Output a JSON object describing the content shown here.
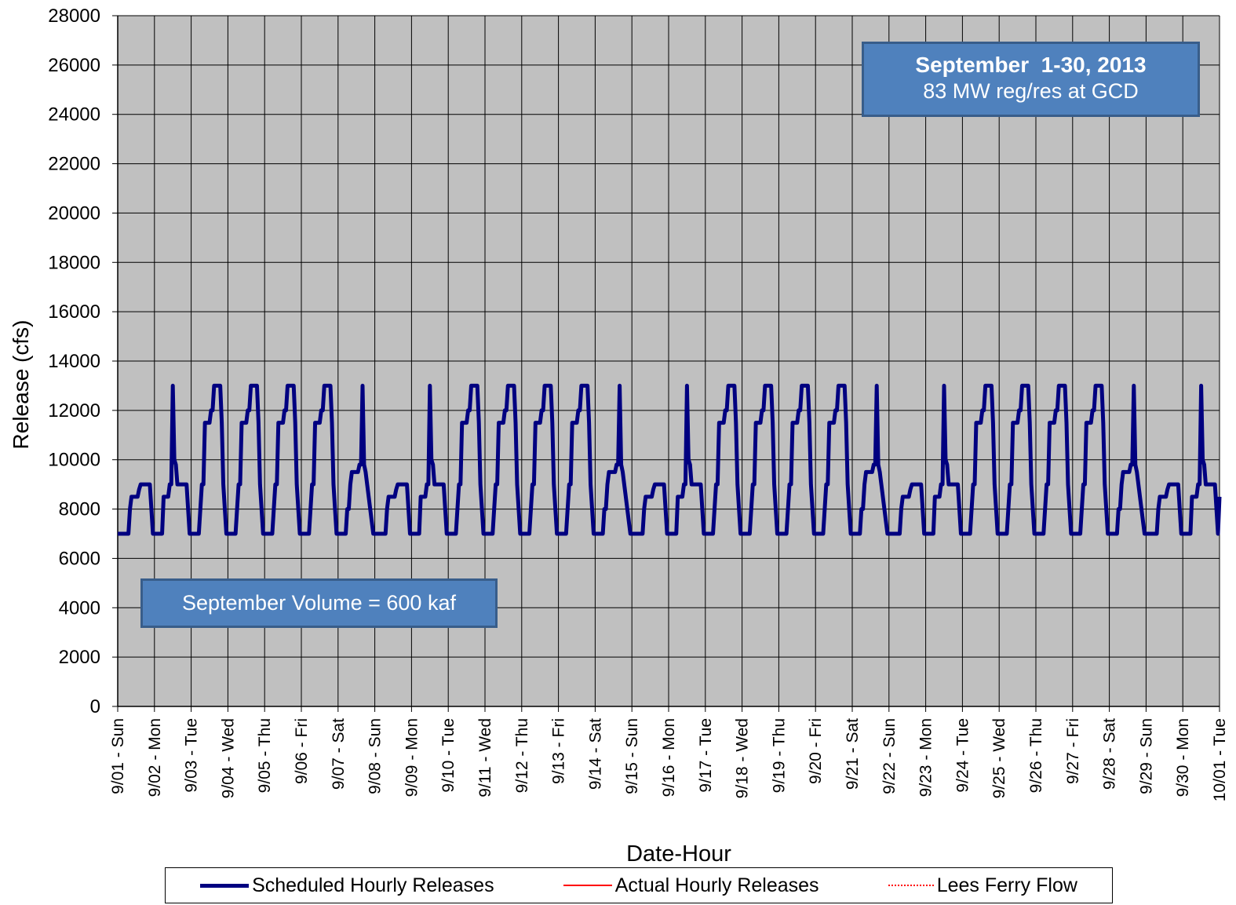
{
  "chart_data": {
    "type": "line",
    "title": "September  1-30, 2013",
    "subtitle": "83 MW reg/res at GCD",
    "annotation": "September Volume = 600 kaf",
    "xlabel": "Date-Hour",
    "ylabel": "Release (cfs)",
    "ylim": [
      0,
      28000
    ],
    "y_ticks": [
      "0",
      "2000",
      "4000",
      "6000",
      "8000",
      "10000",
      "12000",
      "14000",
      "16000",
      "18000",
      "20000",
      "22000",
      "24000",
      "26000",
      "28000"
    ],
    "x_tick_labels": [
      "9/01 - Sun",
      "9/02 - Mon",
      "9/03 - Tue",
      "9/04 - Wed",
      "9/05 - Thu",
      "9/06 - Fri",
      "9/07 - Sat",
      "9/08 - Sun",
      "9/09 - Mon",
      "9/10 - Tue",
      "9/11 - Wed",
      "9/12 - Thu",
      "9/13 - Fri",
      "9/14 - Sat",
      "9/15 - Sun",
      "9/16 - Mon",
      "9/17 - Tue",
      "9/18 - Wed",
      "9/19 - Thu",
      "9/20 - Fri",
      "9/21 - Sat",
      "9/22 - Sun",
      "9/23 - Mon",
      "9/24 - Tue",
      "9/25 - Wed",
      "9/26 - Thu",
      "9/27 - Fri",
      "9/28 - Sat",
      "9/29 - Sun",
      "9/30 - Mon",
      "10/01 - Tue"
    ],
    "grid": true,
    "legend_position": "bottom",
    "plot_background": "#c0c0c0",
    "series": [
      {
        "name": "Scheduled Hourly Releases",
        "color": "#000080",
        "style": "solid",
        "hourly_profiles": {
          "weekday": [
            7000,
            7000,
            7000,
            7000,
            7000,
            7000,
            8000,
            9000,
            9000,
            11500,
            11500,
            11500,
            11500,
            12000,
            12000,
            13000,
            13000,
            13000,
            13000,
            13000,
            11500,
            9000,
            8000,
            7000
          ],
          "monday": [
            7000,
            7000,
            7000,
            7000,
            7000,
            7000,
            8500,
            8500,
            8500,
            8500,
            9000,
            9000,
            13000,
            10000,
            9800,
            9000,
            9000,
            9000,
            9000,
            9000,
            9000,
            9000,
            8000,
            7000
          ],
          "saturday": [
            7000,
            7000,
            7000,
            7000,
            7000,
            7000,
            8000,
            8000,
            9000,
            9500,
            9500,
            9500,
            9500,
            9500,
            9800,
            9800,
            13000,
            9800,
            9500,
            9000,
            8500,
            8000,
            7500,
            7000
          ],
          "sunday": [
            7000,
            7000,
            7000,
            7000,
            7000,
            7000,
            7000,
            7000,
            8000,
            8500,
            8500,
            8500,
            8500,
            8500,
            8800,
            9000,
            9000,
            9000,
            9000,
            9000,
            9000,
            9000,
            8000,
            7000
          ]
        },
        "day_types": [
          "sunday",
          "monday",
          "weekday",
          "weekday",
          "weekday",
          "weekday",
          "saturday",
          "sunday",
          "monday",
          "weekday",
          "weekday",
          "weekday",
          "weekday",
          "saturday",
          "sunday",
          "monday",
          "weekday",
          "weekday",
          "weekday",
          "weekday",
          "saturday",
          "sunday",
          "monday",
          "weekday",
          "weekday",
          "weekday",
          "weekday",
          "saturday",
          "sunday",
          "monday"
        ],
        "final_value": 8500
      },
      {
        "name": "Actual Hourly Releases",
        "color": "#ff0000",
        "style": "solid",
        "values": []
      },
      {
        "name": "Lees Ferry Flow",
        "color": "#ff0000",
        "style": "dotted",
        "values": []
      }
    ]
  }
}
